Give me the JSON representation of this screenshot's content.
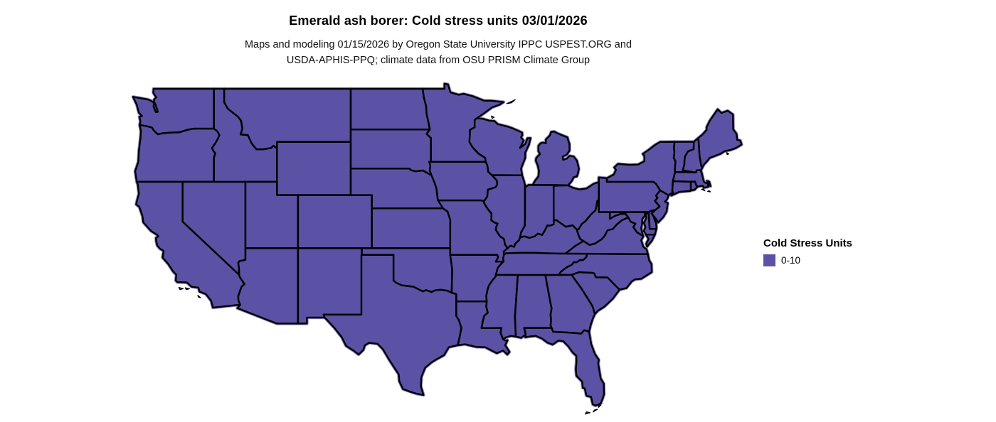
{
  "header": {
    "title": "Emerald ash borer: Cold stress units 03/01/2026",
    "subtitle_lines": [
      "Maps and modeling 01/15/2026 by Oregon State University IPPC USPEST.ORG and",
      "USDA-APHIS-PPQ; climate data from OSU PRISM Climate Group"
    ]
  },
  "legend": {
    "title": "Cold Stress Units",
    "items": [
      {
        "label": "0-10",
        "color": "#5c52a5"
      }
    ]
  },
  "map": {
    "state_fill": "#5c52a5",
    "coast_fringe": "#9a90cb",
    "island_fill": "#8c82c6",
    "border_color": "#000000",
    "background": "#ffffff"
  }
}
